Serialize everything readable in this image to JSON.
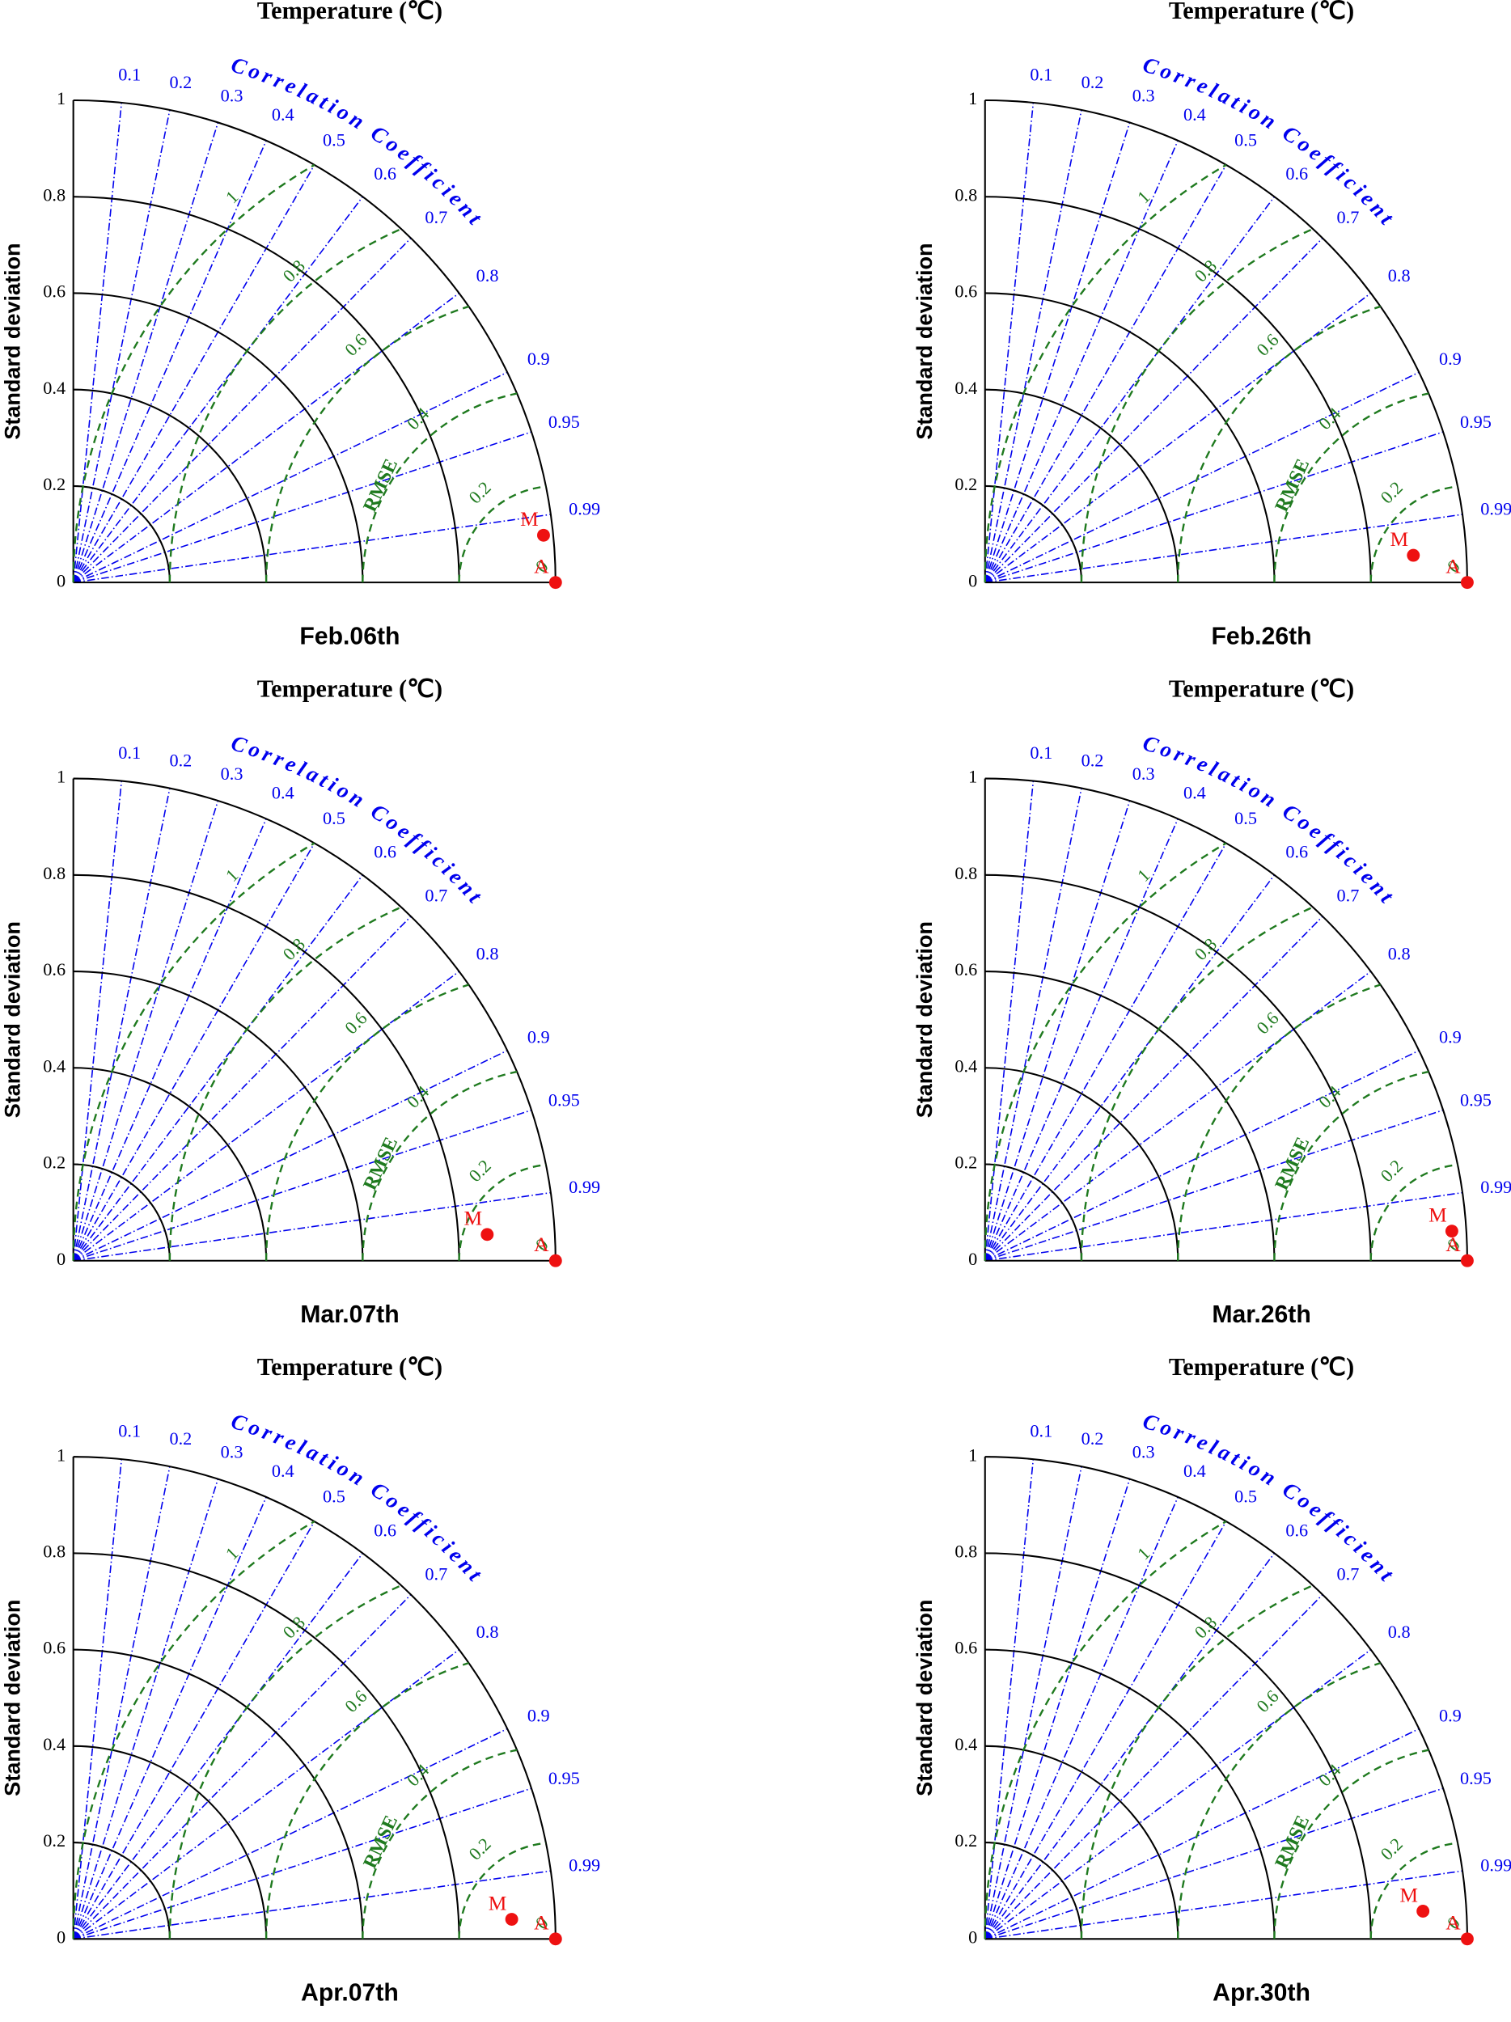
{
  "chart_data": [
    {
      "type": "taylor",
      "title": "Temperature (℃)",
      "caption": "Feb.06th",
      "y_label": "Standard deviation",
      "arc_label": "Correlation Coefficient",
      "rmse_label": "RMSE",
      "ylim": [
        0,
        1
      ],
      "yticks": [
        0,
        0.2,
        0.4,
        0.6,
        0.8,
        1
      ],
      "corr_ticks": [
        0.1,
        0.2,
        0.3,
        0.4,
        0.5,
        0.6,
        0.7,
        0.8,
        0.9,
        0.95,
        0.99
      ],
      "rmse_ticks": [
        0,
        0.2,
        0.4,
        0.6,
        0.8,
        1
      ],
      "corr_color": "#0000ee",
      "rmse_color": "#1f7a1f",
      "point_color": "#ee1111",
      "points": [
        {
          "name": "A",
          "std": 1,
          "corr": 1
        },
        {
          "name": "M",
          "std": 0.98,
          "corr": 0.995
        }
      ]
    },
    {
      "type": "taylor",
      "title": "Temperature (℃)",
      "caption": "Feb.26th",
      "y_label": "Standard deviation",
      "arc_label": "Correlation Coefficient",
      "rmse_label": "RMSE",
      "ylim": [
        0,
        1
      ],
      "yticks": [
        0,
        0.2,
        0.4,
        0.6,
        0.8,
        1
      ],
      "corr_ticks": [
        0.1,
        0.2,
        0.3,
        0.4,
        0.5,
        0.6,
        0.7,
        0.8,
        0.9,
        0.95,
        0.99
      ],
      "rmse_ticks": [
        0,
        0.2,
        0.4,
        0.6,
        0.8,
        1
      ],
      "corr_color": "#0000ee",
      "rmse_color": "#1f7a1f",
      "point_color": "#ee1111",
      "points": [
        {
          "name": "A",
          "std": 1,
          "corr": 1
        },
        {
          "name": "M",
          "std": 0.89,
          "corr": 0.998
        }
      ]
    },
    {
      "type": "taylor",
      "title": "Temperature (℃)",
      "caption": "Mar.07th",
      "y_label": "Standard deviation",
      "arc_label": "Correlation Coefficient",
      "rmse_label": "RMSE",
      "ylim": [
        0,
        1
      ],
      "yticks": [
        0,
        0.2,
        0.4,
        0.6,
        0.8,
        1
      ],
      "corr_ticks": [
        0.1,
        0.2,
        0.3,
        0.4,
        0.5,
        0.6,
        0.7,
        0.8,
        0.9,
        0.95,
        0.99
      ],
      "rmse_ticks": [
        0,
        0.2,
        0.4,
        0.6,
        0.8,
        1
      ],
      "corr_color": "#0000ee",
      "rmse_color": "#1f7a1f",
      "point_color": "#ee1111",
      "points": [
        {
          "name": "A",
          "std": 1,
          "corr": 1
        },
        {
          "name": "M",
          "std": 0.86,
          "corr": 0.998
        }
      ]
    },
    {
      "type": "taylor",
      "title": "Temperature (℃)",
      "caption": "Mar.26th",
      "y_label": "Standard deviation",
      "arc_label": "Correlation Coefficient",
      "rmse_label": "RMSE",
      "ylim": [
        0,
        1
      ],
      "yticks": [
        0,
        0.2,
        0.4,
        0.6,
        0.8,
        1
      ],
      "corr_ticks": [
        0.1,
        0.2,
        0.3,
        0.4,
        0.5,
        0.6,
        0.7,
        0.8,
        0.9,
        0.95,
        0.99
      ],
      "rmse_ticks": [
        0,
        0.2,
        0.4,
        0.6,
        0.8,
        1
      ],
      "corr_color": "#0000ee",
      "rmse_color": "#1f7a1f",
      "point_color": "#ee1111",
      "points": [
        {
          "name": "A",
          "std": 1,
          "corr": 1
        },
        {
          "name": "M",
          "std": 0.97,
          "corr": 0.998
        }
      ]
    },
    {
      "type": "taylor",
      "title": "Temperature (℃)",
      "caption": "Apr.07th",
      "y_label": "Standard deviation",
      "arc_label": "Correlation Coefficient",
      "rmse_label": "RMSE",
      "ylim": [
        0,
        1
      ],
      "yticks": [
        0,
        0.2,
        0.4,
        0.6,
        0.8,
        1
      ],
      "corr_ticks": [
        0.1,
        0.2,
        0.3,
        0.4,
        0.5,
        0.6,
        0.7,
        0.8,
        0.9,
        0.95,
        0.99
      ],
      "rmse_ticks": [
        0,
        0.2,
        0.4,
        0.6,
        0.8,
        1
      ],
      "corr_color": "#0000ee",
      "rmse_color": "#1f7a1f",
      "point_color": "#ee1111",
      "points": [
        {
          "name": "A",
          "std": 1,
          "corr": 1
        },
        {
          "name": "M",
          "std": 0.91,
          "corr": 0.999
        }
      ]
    },
    {
      "type": "taylor",
      "title": "Temperature (℃)",
      "caption": "Apr.30th",
      "y_label": "Standard deviation",
      "arc_label": "Correlation Coefficient",
      "rmse_label": "RMSE",
      "ylim": [
        0,
        1
      ],
      "yticks": [
        0,
        0.2,
        0.4,
        0.6,
        0.8,
        1
      ],
      "corr_ticks": [
        0.1,
        0.2,
        0.3,
        0.4,
        0.5,
        0.6,
        0.7,
        0.8,
        0.9,
        0.95,
        0.99
      ],
      "rmse_ticks": [
        0,
        0.2,
        0.4,
        0.6,
        0.8,
        1
      ],
      "corr_color": "#0000ee",
      "rmse_color": "#1f7a1f",
      "point_color": "#ee1111",
      "points": [
        {
          "name": "A",
          "std": 1,
          "corr": 1
        },
        {
          "name": "M",
          "std": 0.91,
          "corr": 0.998
        }
      ]
    }
  ]
}
